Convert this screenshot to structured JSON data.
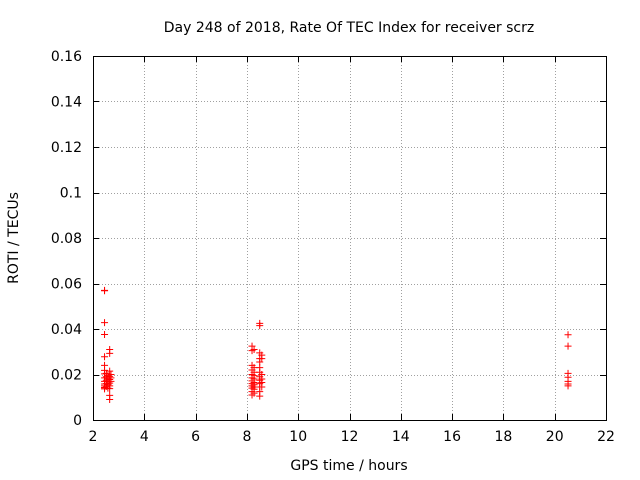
{
  "chart_data": {
    "type": "scatter",
    "title": "Day 248 of 2018, Rate Of TEC Index for receiver scrz",
    "xlabel": "GPS time / hours",
    "ylabel": "ROTI / TECUs",
    "xlim": [
      2,
      22
    ],
    "ylim": [
      0,
      0.16
    ],
    "xticks": [
      2,
      4,
      6,
      8,
      10,
      12,
      14,
      16,
      18,
      20,
      22
    ],
    "yticks": [
      0,
      0.02,
      0.04,
      0.06,
      0.08,
      0.1,
      0.12,
      0.14,
      0.16
    ],
    "xtick_labels": [
      "2",
      "4",
      "6",
      "8",
      "10",
      "12",
      "14",
      "16",
      "18",
      "20",
      "22"
    ],
    "ytick_labels": [
      "0",
      "0.02",
      "0.04",
      "0.06",
      "0.08",
      "0.1",
      "0.12",
      "0.14",
      "0.16"
    ],
    "grid": true,
    "marker": "+",
    "color": "#ff0000",
    "series": [
      {
        "name": "ROTI",
        "points": [
          [
            2.45,
            0.0143
          ],
          [
            2.45,
            0.0137
          ],
          [
            2.45,
            0.057
          ],
          [
            2.45,
            0.0568
          ],
          [
            2.45,
            0.0428
          ],
          [
            2.45,
            0.0376
          ],
          [
            2.45,
            0.0278
          ],
          [
            2.45,
            0.024
          ],
          [
            2.45,
            0.0218
          ],
          [
            2.45,
            0.0203
          ],
          [
            2.45,
            0.0185
          ],
          [
            2.45,
            0.017
          ],
          [
            2.45,
            0.0158
          ],
          [
            2.45,
            0.015
          ],
          [
            2.45,
            0.0142
          ],
          [
            2.52,
            0.0205
          ],
          [
            2.52,
            0.019
          ],
          [
            2.52,
            0.0175
          ],
          [
            2.52,
            0.016
          ],
          [
            2.52,
            0.0148
          ],
          [
            2.58,
            0.0195
          ],
          [
            2.58,
            0.018
          ],
          [
            2.58,
            0.0168
          ],
          [
            2.58,
            0.0155
          ],
          [
            2.58,
            0.014
          ],
          [
            2.65,
            0.031
          ],
          [
            2.65,
            0.0293
          ],
          [
            2.65,
            0.0215
          ],
          [
            2.65,
            0.0192
          ],
          [
            2.65,
            0.0178
          ],
          [
            2.65,
            0.0162
          ],
          [
            2.65,
            0.015
          ],
          [
            2.65,
            0.0138
          ],
          [
            2.65,
            0.0108
          ],
          [
            2.65,
            0.009
          ],
          [
            2.7,
            0.02
          ],
          [
            2.7,
            0.0185
          ],
          [
            2.7,
            0.017
          ],
          [
            8.2,
            0.0325
          ],
          [
            8.2,
            0.0305
          ],
          [
            8.2,
            0.024
          ],
          [
            8.2,
            0.022
          ],
          [
            8.2,
            0.02
          ],
          [
            8.2,
            0.0185
          ],
          [
            8.2,
            0.0172
          ],
          [
            8.2,
            0.016
          ],
          [
            8.2,
            0.015
          ],
          [
            8.2,
            0.014
          ],
          [
            8.2,
            0.0125
          ],
          [
            8.2,
            0.011
          ],
          [
            8.28,
            0.031
          ],
          [
            8.28,
            0.023
          ],
          [
            8.28,
            0.021
          ],
          [
            8.28,
            0.0195
          ],
          [
            8.28,
            0.018
          ],
          [
            8.28,
            0.0165
          ],
          [
            8.28,
            0.0155
          ],
          [
            8.28,
            0.0145
          ],
          [
            8.28,
            0.0135
          ],
          [
            8.28,
            0.0118
          ],
          [
            8.5,
            0.0425
          ],
          [
            8.5,
            0.0415
          ],
          [
            8.5,
            0.0295
          ],
          [
            8.5,
            0.027
          ],
          [
            8.5,
            0.0255
          ],
          [
            8.5,
            0.023
          ],
          [
            8.5,
            0.021
          ],
          [
            8.5,
            0.019
          ],
          [
            8.5,
            0.0175
          ],
          [
            8.5,
            0.016
          ],
          [
            8.5,
            0.0145
          ],
          [
            8.5,
            0.0125
          ],
          [
            8.5,
            0.0105
          ],
          [
            8.58,
            0.0285
          ],
          [
            8.58,
            0.027
          ],
          [
            8.58,
            0.02
          ],
          [
            8.58,
            0.018
          ],
          [
            8.58,
            0.0165
          ],
          [
            8.58,
            0.0145
          ],
          [
            20.52,
            0.0375
          ],
          [
            20.52,
            0.0325
          ],
          [
            20.52,
            0.0205
          ],
          [
            20.52,
            0.0188
          ],
          [
            20.52,
            0.017
          ],
          [
            20.52,
            0.0158
          ],
          [
            20.52,
            0.015
          ]
        ]
      }
    ]
  }
}
